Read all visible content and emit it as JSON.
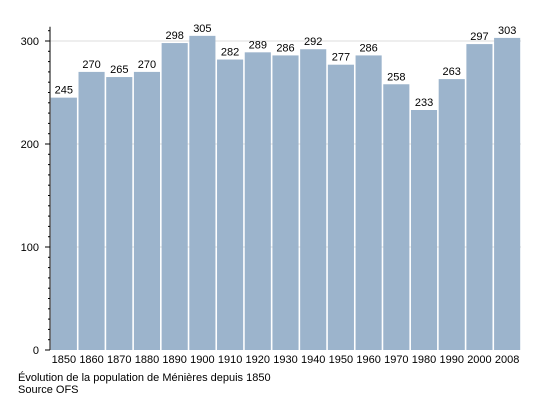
{
  "chart_data": {
    "type": "bar",
    "categories": [
      "1850",
      "1860",
      "1870",
      "1880",
      "1890",
      "1900",
      "1910",
      "1920",
      "1930",
      "1940",
      "1950",
      "1960",
      "1970",
      "1980",
      "1990",
      "2000",
      "2008"
    ],
    "values": [
      245,
      270,
      265,
      270,
      298,
      305,
      282,
      289,
      286,
      292,
      277,
      286,
      258,
      233,
      263,
      297,
      303
    ],
    "data_labels": [
      "245",
      "270",
      "265",
      "270",
      "298",
      "305",
      "282",
      "289",
      "286",
      "292",
      "277",
      "286",
      "258",
      "233",
      "263",
      "297",
      "303"
    ],
    "ylim": [
      0,
      310
    ],
    "yticks": [
      0,
      100,
      200,
      300
    ],
    "yminor_step": 10,
    "grid": true,
    "bar_color": "#9cb4cc",
    "grid_color": "#dddddd",
    "title": "",
    "xlabel": "",
    "ylabel": ""
  },
  "caption": {
    "title": "Évolution de la population de Ménières depuis 1850",
    "source": "Source OFS"
  }
}
